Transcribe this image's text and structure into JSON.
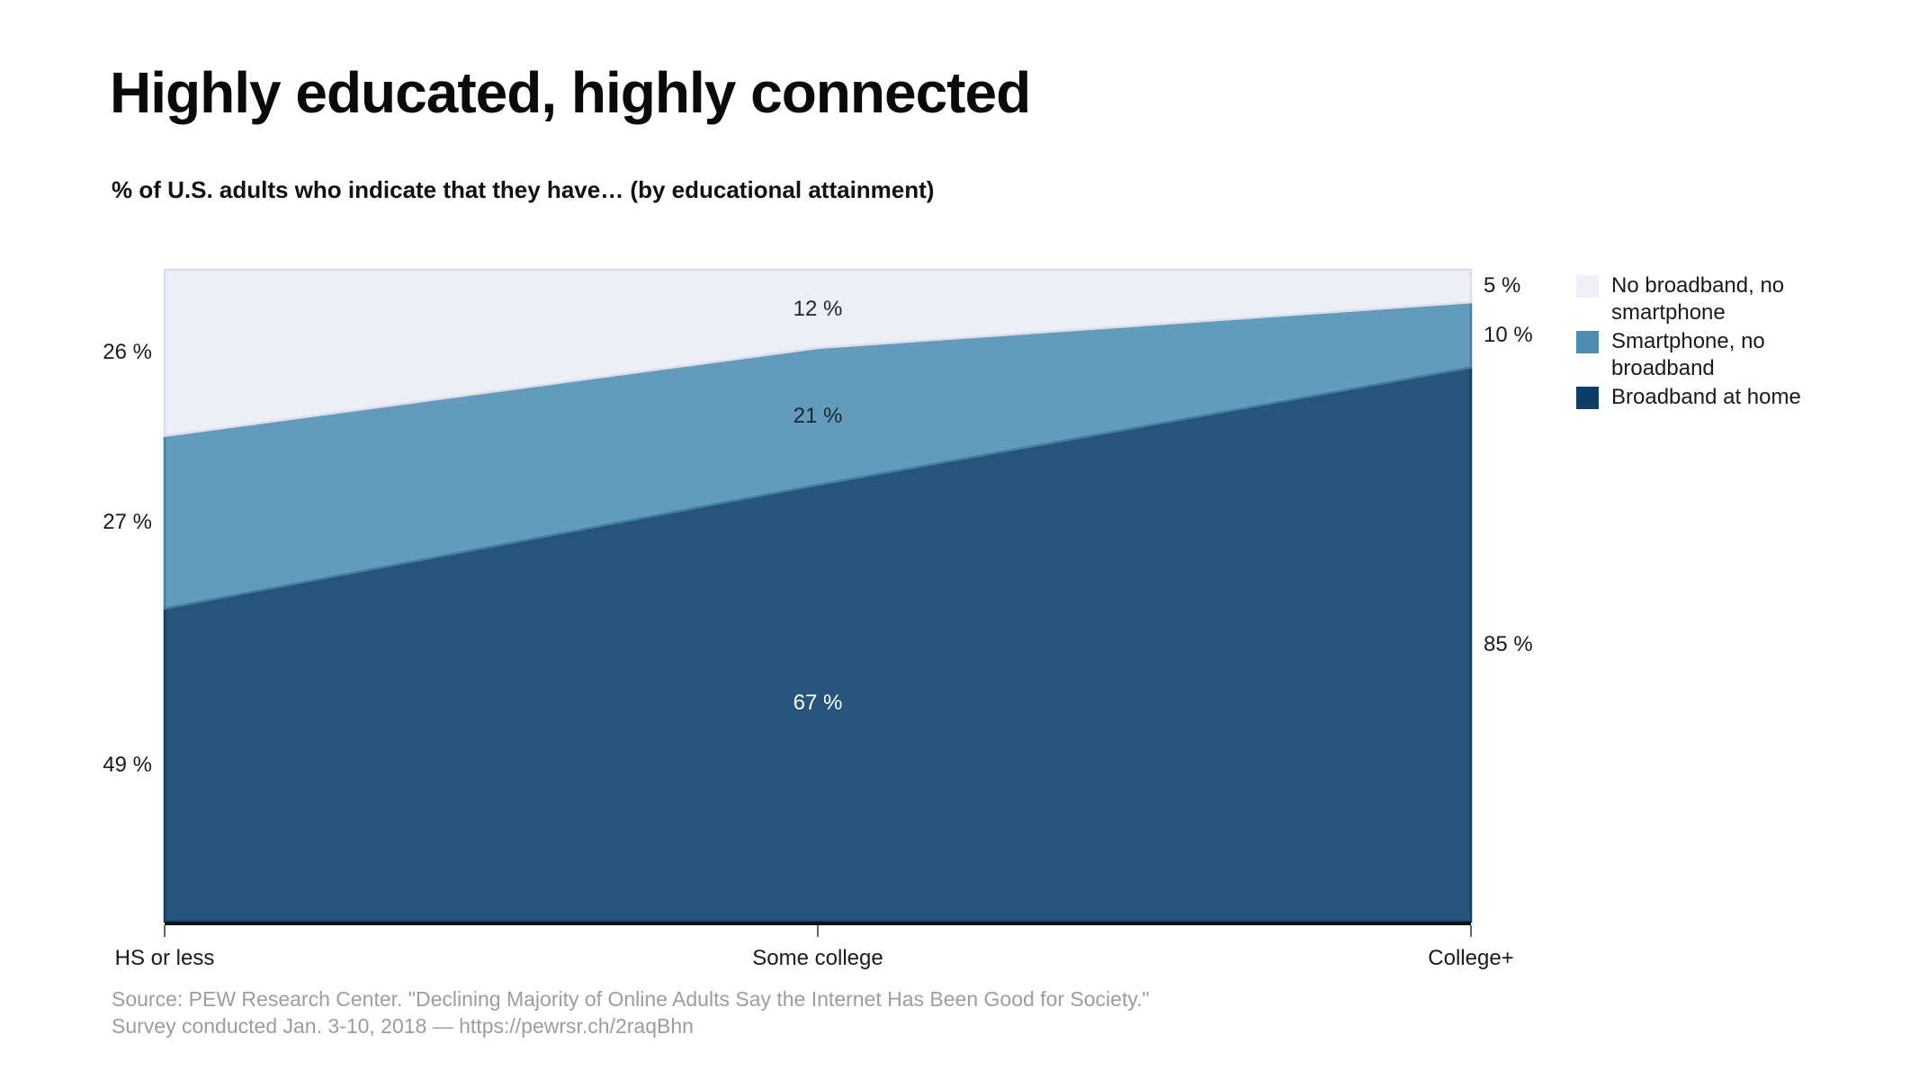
{
  "header": {
    "title": "Highly educated, highly connected",
    "subtitle": "% of U.S. adults who indicate that they have… (by educational attainment)"
  },
  "chart_data": {
    "type": "area",
    "variant": "stacked-normalized",
    "categories": [
      "HS or less",
      "Some college",
      "College+"
    ],
    "series": [
      {
        "name": "Broadband at home",
        "values": [
          49,
          67,
          85
        ],
        "fill": "#26547a",
        "stroke": "#123d64",
        "legend_color": "#0c3e67",
        "label_color": "#ffffff"
      },
      {
        "name": "Smartphone, no broadband",
        "values": [
          27,
          21,
          10
        ],
        "fill": "#639bbd",
        "stroke": "#447fa2",
        "legend_color": "#4f8dae",
        "label_color": "#1d2530"
      },
      {
        "name": "No broadband, no smartphone",
        "values": [
          26,
          12,
          5
        ],
        "fill": "#edeff6",
        "stroke": "#dcdfeb",
        "legend_color": "#eff0f8",
        "label_color": "#1d2530"
      }
    ],
    "label_format": "{v} %",
    "legend_position": "right",
    "grid": false,
    "ylim": [
      0,
      100
    ],
    "axis_color": "#101010"
  },
  "footer": {
    "source_line1": "Source: PEW Research Center. \"Declining Majority of Online Adults Say the Internet Has Been Good for Society.\"",
    "source_line2": "Survey conducted Jan. 3-10, 2018 — https://pewrsr.ch/2raqBhn"
  }
}
